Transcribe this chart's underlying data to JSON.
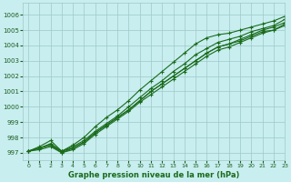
{
  "title": "Graphe pression niveau de la mer (hPa)",
  "bg_color": "#c8eef0",
  "grid_color": "#a0c8c8",
  "line_color": "#1a6b1a",
  "xlim": [
    -0.5,
    23
  ],
  "ylim": [
    996.5,
    1006.8
  ],
  "yticks": [
    997,
    998,
    999,
    1000,
    1001,
    1002,
    1003,
    1004,
    1005,
    1006
  ],
  "xticks": [
    0,
    1,
    2,
    3,
    4,
    5,
    6,
    7,
    8,
    9,
    10,
    11,
    12,
    13,
    14,
    15,
    16,
    17,
    18,
    19,
    20,
    21,
    22,
    23
  ],
  "series": [
    [
      997.1,
      997.3,
      997.5,
      997.1,
      997.3,
      997.7,
      998.3,
      998.8,
      999.3,
      999.8,
      1000.4,
      1001.0,
      1001.5,
      1002.0,
      1002.5,
      1003.0,
      1003.5,
      1003.9,
      1004.1,
      1004.4,
      1004.7,
      1005.0,
      1005.2,
      1005.5
    ],
    [
      997.1,
      997.4,
      997.8,
      997.1,
      997.5,
      998.0,
      998.7,
      999.3,
      999.8,
      1000.4,
      1001.1,
      1001.7,
      1002.3,
      1002.9,
      1003.5,
      1004.1,
      1004.5,
      1004.7,
      1004.8,
      1005.0,
      1005.2,
      1005.4,
      1005.6,
      1005.9
    ],
    [
      997.1,
      997.3,
      997.5,
      997.0,
      997.3,
      997.7,
      998.3,
      998.8,
      999.3,
      999.8,
      1000.4,
      1001.0,
      1001.5,
      1002.0,
      1002.5,
      1003.0,
      1003.5,
      1003.9,
      1004.1,
      1004.3,
      1004.6,
      1004.9,
      1005.0,
      1005.4
    ],
    [
      997.1,
      997.3,
      997.6,
      997.1,
      997.4,
      997.8,
      998.4,
      998.9,
      999.4,
      1000.0,
      1000.6,
      1001.2,
      1001.7,
      1002.3,
      1002.8,
      1003.4,
      1003.8,
      1004.2,
      1004.4,
      1004.6,
      1004.9,
      1005.1,
      1005.3,
      1005.7
    ],
    [
      997.1,
      997.2,
      997.4,
      997.0,
      997.2,
      997.6,
      998.2,
      998.7,
      999.2,
      999.7,
      1000.3,
      1000.8,
      1001.3,
      1001.8,
      1002.3,
      1002.8,
      1003.3,
      1003.7,
      1003.9,
      1004.2,
      1004.5,
      1004.8,
      1005.0,
      1005.3
    ]
  ]
}
